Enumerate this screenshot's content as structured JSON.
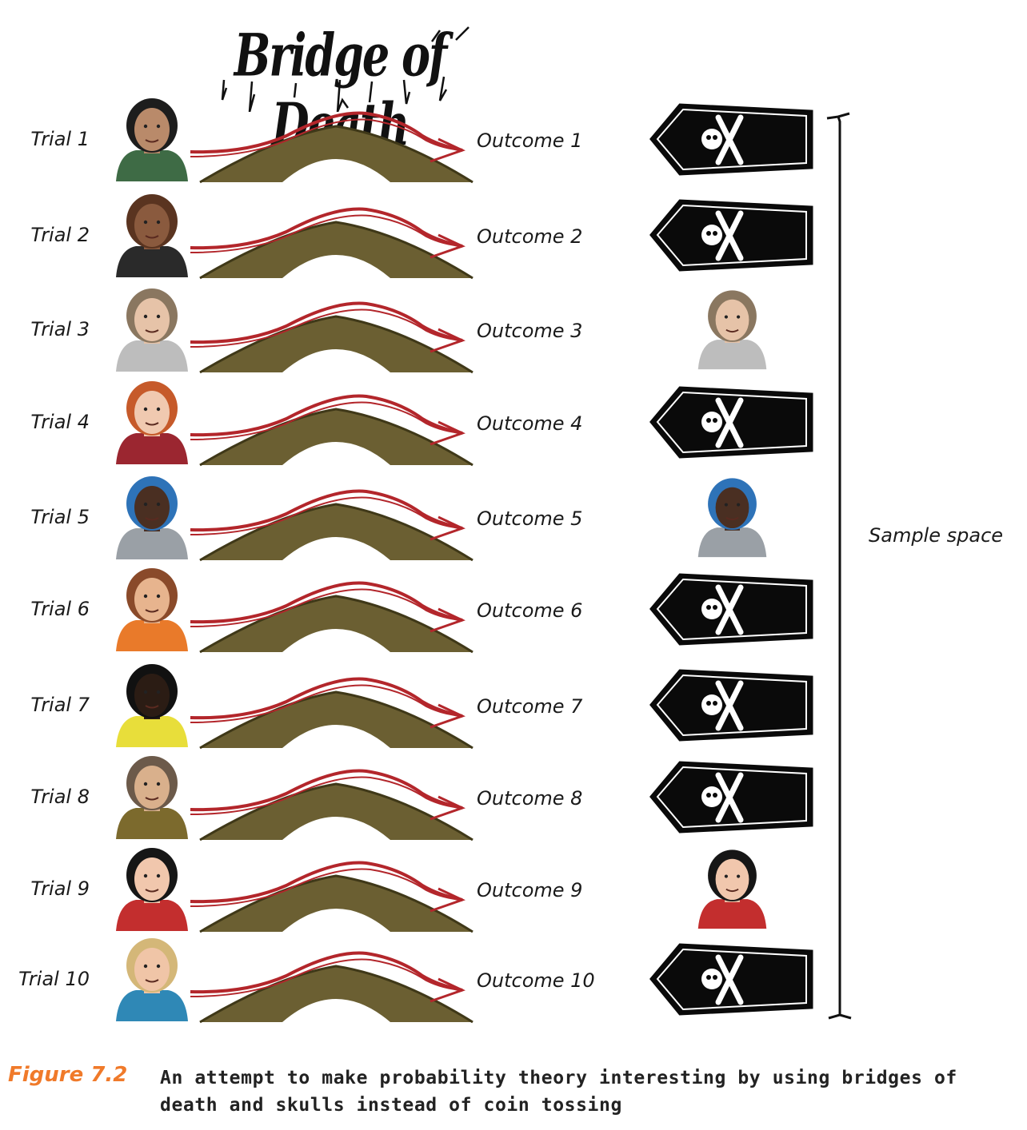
{
  "title": "Bridge of Death",
  "trials": [
    {
      "trial": "Trial 1",
      "outcome": "Outcome 1",
      "person": "man-green-shirt",
      "result": "coffin"
    },
    {
      "trial": "Trial 2",
      "outcome": "Outcome 2",
      "person": "woman-curly-brown-hair",
      "result": "coffin"
    },
    {
      "trial": "Trial 3",
      "outcome": "Outcome 3",
      "person": "man-mohawk-goatee",
      "result": "person"
    },
    {
      "trial": "Trial 4",
      "outcome": "Outcome 4",
      "person": "woman-red-hair",
      "result": "coffin"
    },
    {
      "trial": "Trial 5",
      "outcome": "Outcome 5",
      "person": "woman-blue-afro",
      "result": "person"
    },
    {
      "trial": "Trial 6",
      "outcome": "Outcome 6",
      "person": "man-beard-beanie",
      "result": "coffin"
    },
    {
      "trial": "Trial 7",
      "outcome": "Outcome 7",
      "person": "man-yellow-shirt",
      "result": "coffin"
    },
    {
      "trial": "Trial 8",
      "outcome": "Outcome 8",
      "person": "man-tweed-jacket",
      "result": "coffin"
    },
    {
      "trial": "Trial 9",
      "outcome": "Outcome 9",
      "person": "woman-black-braid",
      "result": "person"
    },
    {
      "trial": "Trial 10",
      "outcome": "Outcome 10",
      "person": "woman-blonde-hair",
      "result": "coffin"
    }
  ],
  "sample_space_label": "Sample space",
  "caption": {
    "label": "Figure 7.2",
    "text": "An attempt to make probability theory interesting by using bridges of death and skulls instead of coin tossing"
  },
  "colors": {
    "arrow": "#b3262b",
    "bridge": "#6b5f32",
    "coffin": "#0a0a0a",
    "figure_label": "#f07a2a"
  },
  "person_palette": {
    "man-green-shirt": {
      "skin": "#b98a6a",
      "hair": "#1d1d1d",
      "shirt": "#3e6b45"
    },
    "woman-curly-brown-hair": {
      "skin": "#8a5a3e",
      "hair": "#5a3420",
      "shirt": "#2a2a2a"
    },
    "man-mohawk-goatee": {
      "skin": "#e6c3a8",
      "hair": "#8a7760",
      "shirt": "#bdbdbd"
    },
    "woman-red-hair": {
      "skin": "#f0c9b0",
      "hair": "#c65a2a",
      "shirt": "#9b2630"
    },
    "woman-blue-afro": {
      "skin": "#4a2f22",
      "hair": "#2e73b8",
      "shirt": "#9aa0a6"
    },
    "man-beard-beanie": {
      "skin": "#e7b48e",
      "hair": "#8a4a2a",
      "shirt": "#e97a2a"
    },
    "man-yellow-shirt": {
      "skin": "#2b1c14",
      "hair": "#111111",
      "shirt": "#e8de3a"
    },
    "man-tweed-jacket": {
      "skin": "#d9b08c",
      "hair": "#6c5a4a",
      "shirt": "#7c6a2d"
    },
    "woman-black-braid": {
      "skin": "#f1c7ad",
      "hair": "#161616",
      "shirt": "#c32e2e"
    },
    "woman-blonde-hair": {
      "skin": "#f0c5a7",
      "hair": "#d4b778",
      "shirt": "#2f88b6"
    }
  }
}
